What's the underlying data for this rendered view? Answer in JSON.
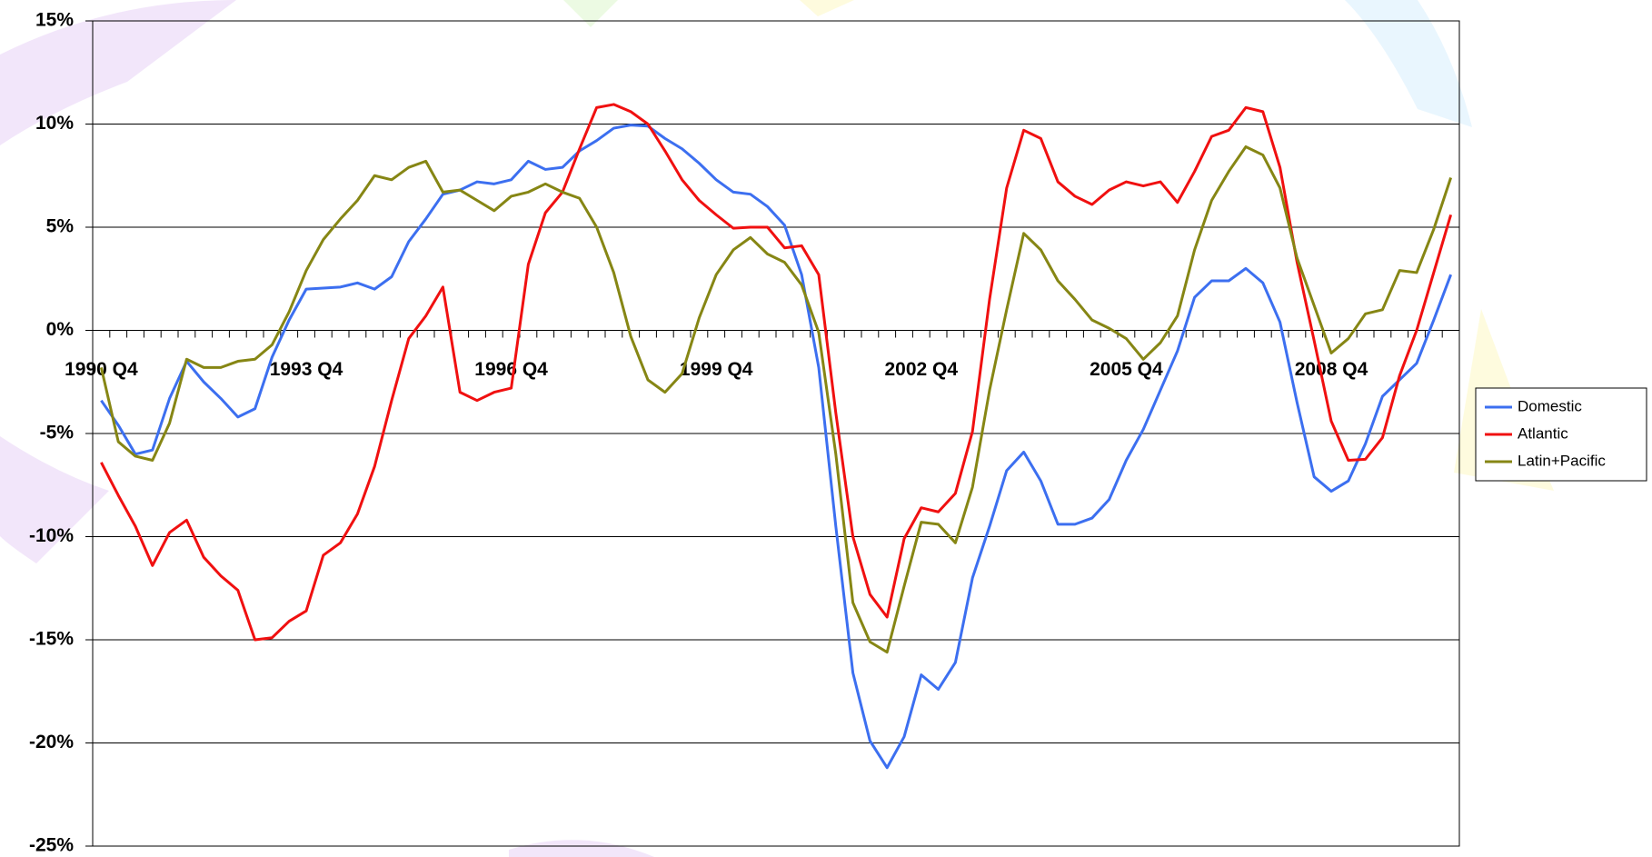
{
  "chart_data": {
    "type": "line",
    "categories": [
      "1990 Q4",
      null,
      null,
      null,
      null,
      null,
      null,
      null,
      null,
      null,
      null,
      null,
      "1993 Q4",
      null,
      null,
      null,
      null,
      null,
      null,
      null,
      null,
      null,
      null,
      null,
      "1996 Q4",
      null,
      null,
      null,
      null,
      null,
      null,
      null,
      null,
      null,
      null,
      null,
      "1999 Q4",
      null,
      null,
      null,
      null,
      null,
      null,
      null,
      null,
      null,
      null,
      null,
      "2002 Q4",
      null,
      null,
      null,
      null,
      null,
      null,
      null,
      null,
      null,
      null,
      null,
      "2005 Q4",
      null,
      null,
      null,
      null,
      null,
      null,
      null,
      null,
      null,
      null,
      null,
      "2008 Q4",
      null,
      null,
      null,
      null,
      null,
      null,
      null
    ],
    "series": [
      {
        "name": "Domestic",
        "color": "#3c6ff0",
        "values": [
          -3.4,
          -4.6,
          -6.0,
          -5.8,
          -3.3,
          -1.5,
          -2.5,
          -3.3,
          -4.2,
          -3.8,
          -1.3,
          0.5,
          2.0,
          2.05,
          2.1,
          2.3,
          2.0,
          2.6,
          4.3,
          5.4,
          6.6,
          6.8,
          7.2,
          7.1,
          7.3,
          8.2,
          7.8,
          7.9,
          8.7,
          9.2,
          9.8,
          9.95,
          9.9,
          9.3,
          8.8,
          8.1,
          7.3,
          6.7,
          6.6,
          6.0,
          5.1,
          2.7,
          -1.8,
          -9.5,
          -16.6,
          -19.9,
          -21.2,
          -19.7,
          -16.7,
          -17.4,
          -16.1,
          -12.0,
          -9.5,
          -6.8,
          -5.9,
          -7.3,
          -9.4,
          -9.4,
          -9.1,
          -8.2,
          -6.3,
          -4.8,
          -2.9,
          -1.0,
          1.6,
          2.4,
          2.4,
          3.0,
          2.3,
          0.4,
          -3.5,
          -7.1,
          -7.8,
          -7.3,
          -5.5,
          -3.2,
          -2.4,
          -1.6,
          0.5,
          2.7
        ]
      },
      {
        "name": "Atlantic",
        "color": "#f01010",
        "values": [
          -6.4,
          -8.0,
          -9.5,
          -11.4,
          -9.8,
          -9.2,
          -11.0,
          -11.9,
          -12.6,
          -15.0,
          -14.9,
          -14.1,
          -13.6,
          -10.9,
          -10.3,
          -8.9,
          -6.6,
          -3.4,
          -0.4,
          0.7,
          2.1,
          -3.0,
          -3.4,
          -3.0,
          -2.8,
          3.2,
          5.7,
          6.7,
          8.8,
          10.8,
          10.95,
          10.6,
          10.0,
          8.7,
          7.3,
          6.3,
          5.6,
          4.95,
          5.0,
          5.0,
          4.0,
          4.1,
          2.7,
          -4.0,
          -10.0,
          -12.8,
          -13.9,
          -10.1,
          -8.6,
          -8.8,
          -7.9,
          -4.9,
          1.5,
          6.9,
          9.7,
          9.3,
          7.2,
          6.5,
          6.1,
          6.8,
          7.2,
          7.0,
          7.2,
          6.2,
          7.7,
          9.4,
          9.7,
          10.8,
          10.6,
          7.9,
          3.3,
          -0.5,
          -4.4,
          -6.3,
          -6.25,
          -5.2,
          -2.2,
          0.0,
          2.8,
          5.6
        ]
      },
      {
        "name": "Latin+Pacific",
        "color": "#868614",
        "values": [
          -1.8,
          -5.4,
          -6.1,
          -6.3,
          -4.5,
          -1.4,
          -1.8,
          -1.8,
          -1.5,
          -1.4,
          -0.7,
          0.9,
          2.9,
          4.4,
          5.4,
          6.3,
          7.5,
          7.3,
          7.9,
          8.2,
          6.7,
          6.8,
          6.3,
          5.8,
          6.5,
          6.7,
          7.1,
          6.7,
          6.4,
          5.0,
          2.8,
          -0.3,
          -2.4,
          -3.0,
          -2.1,
          0.6,
          2.7,
          3.9,
          4.5,
          3.7,
          3.3,
          2.2,
          -0.1,
          -6.0,
          -13.2,
          -15.1,
          -15.6,
          -12.4,
          -9.3,
          -9.4,
          -10.3,
          -7.6,
          -2.9,
          1.0,
          4.7,
          3.9,
          2.4,
          1.5,
          0.5,
          0.1,
          -0.4,
          -1.4,
          -0.6,
          0.7,
          3.9,
          6.3,
          7.7,
          8.9,
          8.5,
          6.9,
          3.5,
          1.2,
          -1.1,
          -0.4,
          0.8,
          1.0,
          2.9,
          2.8,
          4.9,
          7.4
        ]
      }
    ],
    "ylim": [
      -25,
      15
    ],
    "yticks": [
      {
        "value": -25,
        "label": "-25%"
      },
      {
        "value": -20,
        "label": "-20%"
      },
      {
        "value": -15,
        "label": "-15%"
      },
      {
        "value": -10,
        "label": "-10%"
      },
      {
        "value": -5,
        "label": "-5%"
      },
      {
        "value": 0,
        "label": "0%"
      },
      {
        "value": 5,
        "label": "5%"
      },
      {
        "value": 10,
        "label": "10%"
      },
      {
        "value": 15,
        "label": "15%"
      }
    ],
    "grid": true,
    "legend": "right"
  }
}
